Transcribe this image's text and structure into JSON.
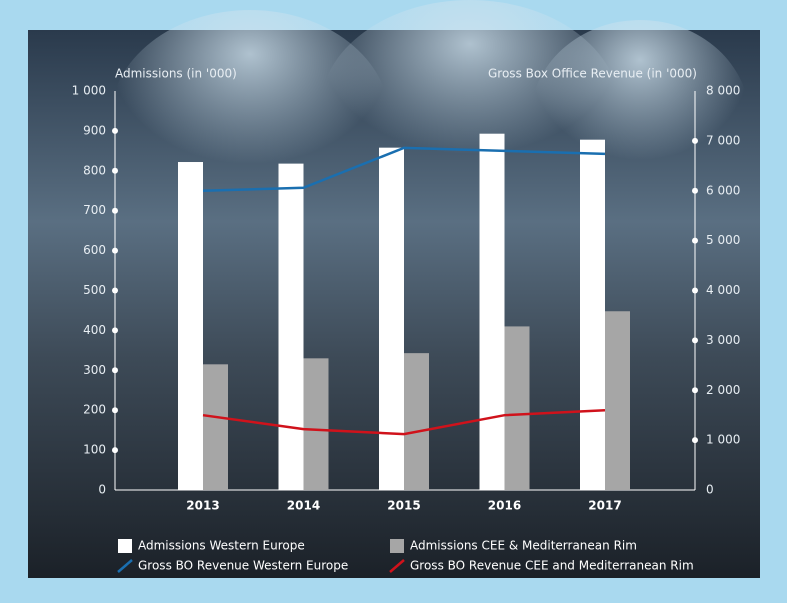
{
  "chart_data": {
    "type": "bar",
    "y_label": "Admissions (in '000)",
    "y2_label": "Gross Box Office Revenue (in '000)",
    "categories": [
      "2013",
      "2014",
      "2015",
      "2016",
      "2017"
    ],
    "series": [
      {
        "name": "Admissions Western Europe",
        "type": "bar",
        "color": "#ffffff",
        "values": [
          822,
          818,
          858,
          893,
          878
        ]
      },
      {
        "name": "Admissions CEE & Mediterranean Rim",
        "type": "bar",
        "color": "#a6a6a6",
        "values": [
          315,
          330,
          343,
          410,
          448
        ]
      },
      {
        "name": "Gross BO Revenue Western Europe",
        "type": "line",
        "axis": "y2",
        "color": "#1a6fb0",
        "values": [
          6000,
          6060,
          6860,
          6800,
          6740
        ]
      },
      {
        "name": "Gross BO Revenue CEE and Mediterranean Rim",
        "type": "line",
        "axis": "y2",
        "color": "#d0121b",
        "values": [
          1500,
          1220,
          1120,
          1500,
          1600
        ]
      }
    ],
    "ylim": [
      0,
      1000
    ],
    "yticks": [
      0,
      100,
      200,
      300,
      400,
      500,
      600,
      700,
      800,
      900,
      {
        "value": 1000,
        "label": "1 000"
      }
    ],
    "y2lim": [
      0,
      8000
    ],
    "y2ticks": [
      0,
      {
        "value": 1000,
        "label": "1 000"
      },
      {
        "value": 2000,
        "label": "2 000"
      },
      {
        "value": 3000,
        "label": "3 000"
      },
      {
        "value": 4000,
        "label": "4 000"
      },
      {
        "value": 5000,
        "label": "5 000"
      },
      {
        "value": 6000,
        "label": "6 000"
      },
      {
        "value": 7000,
        "label": "7 000"
      },
      {
        "value": 8000,
        "label": "8 000"
      }
    ]
  }
}
